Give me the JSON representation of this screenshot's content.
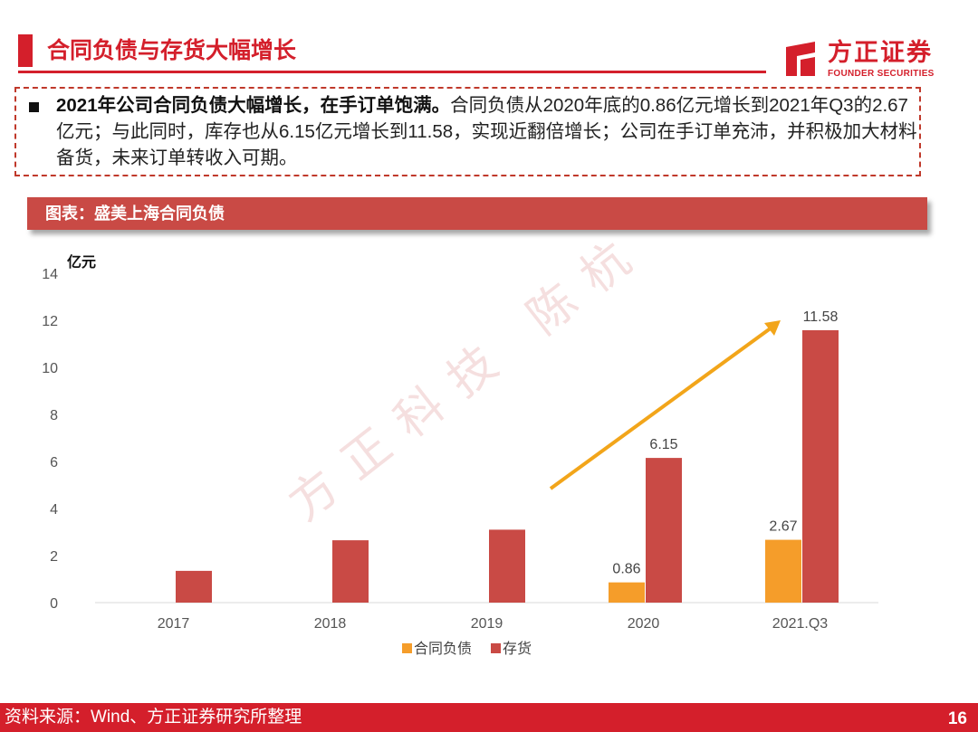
{
  "header": {
    "title": "合同负债与存货大幅增长",
    "logo_cn": "方正证券",
    "logo_en": "FOUNDER SECURITIES",
    "brand_color": "#d41f2b"
  },
  "note": {
    "bold": "2021年公司合同负债大幅增长，在手订单饱满。",
    "body": "合同负债从2020年底的0.86亿元增长到2021年Q3的2.67亿元；与此同时，库存也从6.15亿元增长到11.58，实现近翻倍增长；公司在手订单充沛，并积极加大材料备货，未来订单转收入可期。"
  },
  "chart_header": "图表：盛美上海合同负债",
  "chart_data": {
    "type": "bar",
    "ylabel": "亿元",
    "ylim": [
      0,
      14
    ],
    "yticks": [
      0,
      2,
      4,
      6,
      8,
      10,
      12,
      14
    ],
    "categories": [
      "2017",
      "2018",
      "2019",
      "2020",
      "2021.Q3"
    ],
    "series": [
      {
        "name": "合同负债",
        "color": "#f59d2a",
        "values": [
          null,
          null,
          null,
          0.86,
          2.67
        ],
        "labels": [
          "",
          "",
          "",
          "0.86",
          "2.67"
        ]
      },
      {
        "name": "存货",
        "color": "#c94a45",
        "values": [
          1.35,
          2.65,
          3.1,
          6.15,
          11.58
        ],
        "labels": [
          "",
          "",
          "",
          "6.15",
          "11.58"
        ]
      }
    ],
    "legend_position": "bottom",
    "annotation": "trend arrow from 2020 towards 2021.Q3 inventory",
    "arrow_color": "#f2a51a"
  },
  "watermark": "方正科技  陈杭",
  "footer": {
    "source": "资料来源：Wind、方正证券研究所整理",
    "page": "16"
  }
}
